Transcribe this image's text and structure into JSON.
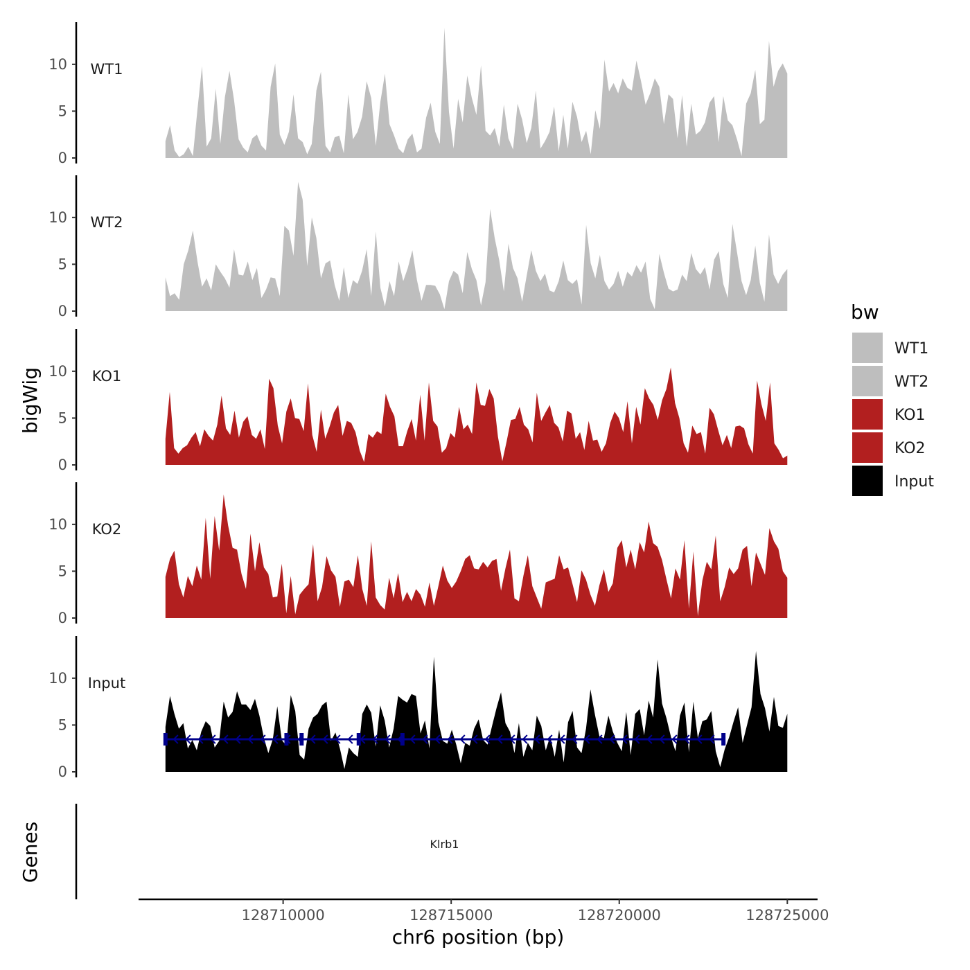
{
  "chart_data": {
    "type": "area",
    "chromosome": "chr6",
    "xlabel": "chr6 position (bp)",
    "ylabel": "bigWig",
    "genes_label": "Genes",
    "xlim": [
      128705700,
      128725900
    ],
    "x_ticks": [
      128710000,
      128715000,
      128720000,
      128725000
    ],
    "x_tick_labels": [
      "128710000",
      "128715000",
      "128720000",
      "128725000"
    ],
    "ylim": [
      0,
      14.5
    ],
    "y_ticks": [
      0,
      5,
      10
    ],
    "y_tick_labels": [
      "0",
      "5",
      "10"
    ],
    "signal_range": [
      128706500,
      128725000
    ],
    "legend": {
      "title": "bw",
      "entries": [
        "WT1",
        "WT2",
        "KO1",
        "KO2",
        "Input"
      ]
    },
    "colors": {
      "WT1": "#bebebe",
      "WT2": "#bebebe",
      "KO1": "#b21f1f",
      "KO2": "#b21f1f",
      "Input": "#000000",
      "gene": "#00008b"
    },
    "series": [
      {
        "name": "WT1",
        "label": "WT1",
        "values": [
          1.8,
          3.5,
          0.8,
          0.1,
          0.4,
          1.2,
          0.2,
          5.2,
          9.8,
          1.2,
          2.1,
          7.4,
          1.5,
          6.5,
          9.3,
          6.2,
          2.0,
          1.1,
          0.6,
          2.1,
          2.5,
          1.3,
          0.8,
          7.6,
          10.1,
          2.5,
          1.4,
          2.8,
          6.8,
          2.1,
          1.7,
          0.4,
          1.5,
          7.2,
          9.2,
          1.3,
          0.6,
          2.2,
          2.4,
          0.5,
          6.8,
          2.0,
          2.8,
          4.4,
          8.2,
          6.4,
          1.3,
          6.0,
          9.0,
          3.6,
          2.4,
          1.0,
          0.5,
          2.0,
          2.6,
          0.6,
          1.0,
          4.3,
          5.9,
          2.8,
          1.5,
          13.9,
          4.9,
          1.0,
          6.3,
          3.8,
          8.8,
          6.4,
          4.6,
          9.9,
          2.9,
          2.4,
          3.2,
          1.2,
          5.7,
          2.1,
          0.9,
          5.8,
          4.1,
          1.6,
          3.2,
          7.2,
          1.0,
          1.8,
          2.8,
          5.5,
          0.7,
          4.6,
          1.0,
          6.0,
          4.4,
          1.7,
          2.9,
          0.4,
          5.1,
          3.1,
          10.5,
          7.1,
          8.0,
          6.9,
          8.5,
          7.5,
          7.2,
          10.4,
          8.2,
          5.7,
          6.9,
          8.5,
          7.6,
          3.6,
          6.8,
          6.3,
          2.1,
          6.7,
          1.2,
          5.8,
          2.5,
          2.9,
          3.8,
          5.9,
          6.6,
          1.7,
          6.6,
          4.0,
          3.5,
          2.0,
          0.2,
          5.8,
          6.9,
          9.4,
          3.6,
          4.1,
          12.5,
          7.6,
          9.3,
          10.1,
          9.0
        ]
      },
      {
        "name": "WT2",
        "label": "WT2",
        "values": [
          3.6,
          1.6,
          1.9,
          1.2,
          5.0,
          6.5,
          8.6,
          5.3,
          2.6,
          3.5,
          2.2,
          5.0,
          4.2,
          3.5,
          2.5,
          6.6,
          3.9,
          3.8,
          5.3,
          3.3,
          4.6,
          1.4,
          2.3,
          3.6,
          3.5,
          1.6,
          9.1,
          8.6,
          5.9,
          13.8,
          11.9,
          4.8,
          10.0,
          7.8,
          3.5,
          5.1,
          5.4,
          2.8,
          1.1,
          4.7,
          1.4,
          3.3,
          2.9,
          4.3,
          6.6,
          1.6,
          8.5,
          2.5,
          0.5,
          3.2,
          1.6,
          5.3,
          3.2,
          4.6,
          6.5,
          3.3,
          1.1,
          2.8,
          2.8,
          2.7,
          1.8,
          0.2,
          3.2,
          4.3,
          3.9,
          1.9,
          6.3,
          4.5,
          3.3,
          0.6,
          3.1,
          10.9,
          7.8,
          5.4,
          2.1,
          7.2,
          4.6,
          3.5,
          1.0,
          3.8,
          6.5,
          4.3,
          3.2,
          4.0,
          2.2,
          2.0,
          3.2,
          5.4,
          3.3,
          2.9,
          3.4,
          0.7,
          9.2,
          5.1,
          3.5,
          6.0,
          3.2,
          2.3,
          2.9,
          4.3,
          2.6,
          4.2,
          3.7,
          4.9,
          4.1,
          5.3,
          1.3,
          0.2,
          6.1,
          4.1,
          2.4,
          2.1,
          2.3,
          3.9,
          3.2,
          6.2,
          4.5,
          3.9,
          4.7,
          2.3,
          5.5,
          6.4,
          2.9,
          1.4,
          9.3,
          6.3,
          3.2,
          1.7,
          3.3,
          7.0,
          3.0,
          1.0,
          8.2,
          3.9,
          2.9,
          3.9,
          4.5
        ]
      },
      {
        "name": "KO1",
        "label": "KO1",
        "values": [
          2.8,
          7.8,
          1.8,
          1.2,
          1.8,
          2.1,
          2.9,
          3.5,
          2.0,
          3.8,
          3.1,
          2.6,
          4.3,
          7.4,
          3.9,
          3.2,
          5.8,
          2.9,
          4.6,
          5.2,
          3.2,
          2.8,
          3.8,
          1.7,
          9.2,
          8.2,
          4.2,
          2.3,
          5.7,
          7.1,
          5.0,
          4.9,
          3.6,
          8.7,
          3.2,
          1.4,
          5.9,
          2.8,
          4.1,
          5.6,
          6.4,
          3.1,
          4.7,
          4.5,
          3.5,
          1.5,
          0.3,
          3.3,
          2.9,
          3.6,
          3.3,
          7.6,
          6.2,
          5.2,
          2.0,
          2.0,
          3.6,
          4.9,
          2.6,
          7.5,
          2.6,
          8.8,
          4.7,
          4.1,
          1.3,
          1.8,
          3.4,
          2.9,
          6.2,
          3.8,
          4.3,
          3.3,
          8.8,
          6.4,
          6.3,
          8.1,
          7.1,
          3.0,
          0.4,
          2.5,
          4.8,
          4.9,
          6.2,
          4.3,
          3.8,
          2.4,
          7.7,
          4.7,
          5.6,
          6.4,
          4.5,
          4.0,
          2.5,
          5.8,
          5.5,
          2.8,
          3.5,
          1.6,
          4.7,
          2.6,
          2.7,
          1.4,
          2.3,
          4.5,
          5.7,
          5.0,
          3.5,
          6.8,
          2.3,
          6.2,
          4.3,
          8.2,
          7.1,
          6.4,
          4.8,
          6.9,
          8.1,
          10.4,
          6.6,
          5.0,
          2.3,
          1.3,
          4.2,
          3.3,
          3.5,
          1.2,
          6.1,
          5.4,
          3.7,
          2.1,
          3.2,
          1.8,
          4.1,
          4.2,
          3.9,
          2.2,
          1.2,
          9.0,
          6.5,
          4.7,
          8.8,
          2.3,
          1.6,
          0.7,
          1.0
        ]
      },
      {
        "name": "KO2",
        "label": "KO2",
        "values": [
          4.4,
          6.3,
          7.2,
          3.6,
          2.2,
          4.5,
          3.4,
          5.6,
          4.1,
          10.7,
          4.2,
          10.9,
          7.2,
          13.2,
          9.9,
          7.5,
          7.3,
          4.7,
          3.1,
          9.0,
          5.0,
          8.1,
          5.4,
          4.7,
          2.2,
          2.3,
          5.8,
          0.5,
          4.5,
          0.4,
          2.5,
          3.1,
          3.6,
          7.9,
          1.8,
          3.3,
          6.6,
          5.1,
          4.4,
          1.2,
          3.9,
          4.1,
          3.3,
          6.7,
          3.1,
          1.3,
          8.2,
          2.2,
          1.4,
          0.9,
          4.3,
          2.1,
          4.8,
          1.7,
          2.8,
          1.8,
          3.1,
          2.5,
          1.2,
          3.8,
          1.3,
          3.4,
          5.6,
          4.0,
          3.2,
          3.9,
          5.0,
          6.3,
          6.7,
          5.3,
          5.2,
          6.0,
          5.4,
          6.1,
          6.3,
          2.9,
          5.3,
          7.3,
          2.1,
          1.8,
          4.5,
          6.7,
          3.4,
          2.2,
          1.0,
          3.8,
          4.0,
          4.2,
          6.7,
          5.2,
          5.4,
          3.6,
          1.7,
          5.1,
          4.1,
          2.5,
          1.3,
          3.5,
          5.2,
          2.8,
          3.7,
          7.5,
          8.3,
          5.4,
          7.3,
          5.2,
          8.1,
          7.0,
          10.3,
          8.0,
          7.6,
          6.2,
          4.1,
          2.1,
          5.3,
          4.1,
          8.3,
          1.0,
          7.1,
          0.2,
          4.0,
          6.0,
          5.2,
          8.8,
          1.8,
          3.3,
          5.4,
          4.7,
          5.3,
          7.3,
          7.7,
          3.4,
          7.0,
          5.8,
          4.6,
          9.6,
          8.2,
          7.4,
          5.0,
          4.3
        ]
      },
      {
        "name": "Input",
        "label": "Input",
        "values": [
          4.8,
          8.1,
          6.2,
          4.6,
          5.2,
          2.5,
          3.4,
          2.3,
          4.3,
          5.4,
          4.9,
          2.6,
          3.3,
          7.5,
          5.8,
          6.4,
          8.6,
          7.2,
          7.2,
          6.6,
          7.8,
          6.0,
          3.6,
          2.0,
          3.5,
          7.0,
          3.4,
          2.8,
          8.2,
          6.5,
          1.8,
          1.3,
          4.6,
          5.8,
          6.2,
          7.1,
          7.5,
          3.3,
          4.2,
          2.5,
          0.3,
          2.6,
          2.0,
          1.6,
          6.2,
          7.2,
          6.3,
          2.7,
          7.1,
          5.5,
          2.6,
          4.6,
          8.1,
          7.7,
          7.4,
          8.3,
          8.1,
          4.1,
          5.5,
          2.5,
          12.3,
          5.3,
          3.3,
          3.0,
          4.5,
          2.9,
          0.9,
          3.1,
          2.8,
          4.6,
          5.6,
          3.4,
          2.9,
          4.9,
          6.8,
          8.5,
          5.2,
          4.3,
          2.0,
          5.2,
          1.6,
          3.1,
          2.3,
          6.0,
          4.9,
          2.3,
          3.8,
          1.6,
          4.5,
          1.0,
          5.3,
          6.5,
          2.6,
          2.0,
          4.6,
          8.8,
          6.1,
          3.8,
          3.6,
          6.0,
          4.3,
          3.1,
          2.2,
          6.4,
          1.8,
          6.2,
          6.7,
          3.9,
          7.6,
          5.8,
          12.0,
          7.3,
          5.7,
          3.7,
          2.2,
          6.0,
          7.4,
          2.1,
          7.5,
          3.6,
          5.4,
          5.6,
          6.5,
          2.2,
          0.5,
          2.4,
          3.7,
          5.4,
          6.9,
          3.1,
          5.0,
          6.9,
          12.9,
          8.3,
          6.8,
          4.3,
          8.0,
          4.9,
          4.7,
          6.2
        ]
      }
    ],
    "gene_track": {
      "gene_name": "Klrb1",
      "strand": "-",
      "start": 128706500,
      "end": 128723100,
      "exons": [
        128706500,
        128710100,
        128710550,
        128712250,
        128713550,
        128723100
      ]
    }
  }
}
